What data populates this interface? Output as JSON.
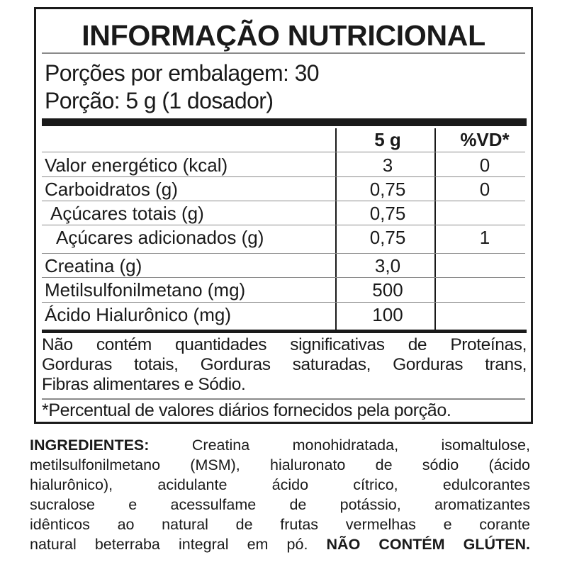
{
  "label": {
    "title": "INFORMAÇÃO NUTRICIONAL",
    "servings_per_package": "Porções por embalagem: 30",
    "serving_size": "Porção: 5 g (1 dosador)",
    "table": {
      "headers": [
        "",
        "5 g",
        "%VD*"
      ],
      "rows": [
        [
          "Valor energético (kcal)",
          "3",
          "0"
        ],
        [
          "Carboidratos (g)",
          "0,75",
          "0"
        ],
        [
          " Açúcares totais (g)",
          "0,75",
          ""
        ],
        [
          "  Açúcares adicionados (g)",
          "0,75",
          "1"
        ],
        [
          "Creatina (g)",
          "3,0",
          ""
        ],
        [
          "Metilsulfonilmetano (mg)",
          "500",
          ""
        ],
        [
          "Ácido Hialurônico (mg)",
          "100",
          ""
        ]
      ]
    },
    "note_lines": [
      "Não contém quantidades significativas de Proteínas,",
      "Gorduras totais, Gorduras saturadas, Gorduras trans,",
      "Fibras alimentares e Sódio."
    ],
    "footnote": "*Percentual de valores diários fornecidos pela porção."
  },
  "ingredients": {
    "heading": "INGREDIENTES:",
    "lines": [
      " Creatina monohidratada, isomaltulose,",
      "metilsulfonilmetano (MSM), hialuronato de sódio (ácido",
      "hialurônico), acidulante ácido cítrico, edulcorantes",
      "sucralose e acessulfame de potássio, aromatizantes",
      "idênticos ao natural de frutas vermelhas e corante",
      "natural beterraba integral em pó. "
    ],
    "gluten_warning": "NÃO CONTÉM GLÚTEN."
  }
}
